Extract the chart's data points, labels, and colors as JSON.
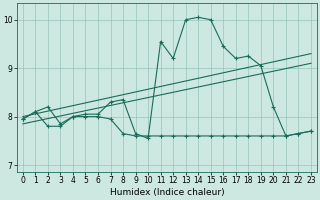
{
  "xlabel": "Humidex (Indice chaleur)",
  "bg_color": "#cce8e0",
  "line_color": "#1a6b5a",
  "xlim": [
    -0.5,
    23.5
  ],
  "ylim": [
    6.85,
    10.35
  ],
  "xticks": [
    0,
    1,
    2,
    3,
    4,
    5,
    6,
    7,
    8,
    9,
    10,
    11,
    12,
    13,
    14,
    15,
    16,
    17,
    18,
    19,
    20,
    21,
    22,
    23
  ],
  "yticks": [
    7,
    8,
    9,
    10
  ],
  "main_line_x": [
    0,
    1,
    2,
    3,
    4,
    5,
    6,
    7,
    8,
    9,
    10,
    11,
    12,
    13,
    14,
    15,
    16,
    17,
    18,
    19,
    20,
    21,
    22,
    23
  ],
  "main_line_y": [
    7.95,
    8.1,
    8.2,
    7.85,
    8.0,
    8.05,
    8.05,
    8.3,
    8.35,
    7.65,
    7.55,
    9.55,
    9.2,
    10.0,
    10.05,
    10.0,
    9.45,
    9.2,
    9.25,
    9.05,
    8.2,
    7.6,
    7.65,
    7.7
  ],
  "trend1_x": [
    0,
    23
  ],
  "trend1_y": [
    7.85,
    9.1
  ],
  "trend2_x": [
    0,
    23
  ],
  "trend2_y": [
    8.0,
    9.3
  ],
  "lower_line_x": [
    0,
    1,
    2,
    3,
    4,
    5,
    6,
    7,
    8,
    9,
    10,
    11,
    12,
    13,
    14,
    15,
    16,
    17,
    18,
    19,
    20,
    21,
    22,
    23
  ],
  "lower_line_y": [
    7.95,
    8.1,
    7.8,
    7.8,
    8.0,
    8.0,
    8.0,
    7.95,
    7.65,
    7.6,
    7.6,
    7.6,
    7.6,
    7.6,
    7.6,
    7.6,
    7.6,
    7.6,
    7.6,
    7.6,
    7.6,
    7.6,
    7.65,
    7.7
  ]
}
